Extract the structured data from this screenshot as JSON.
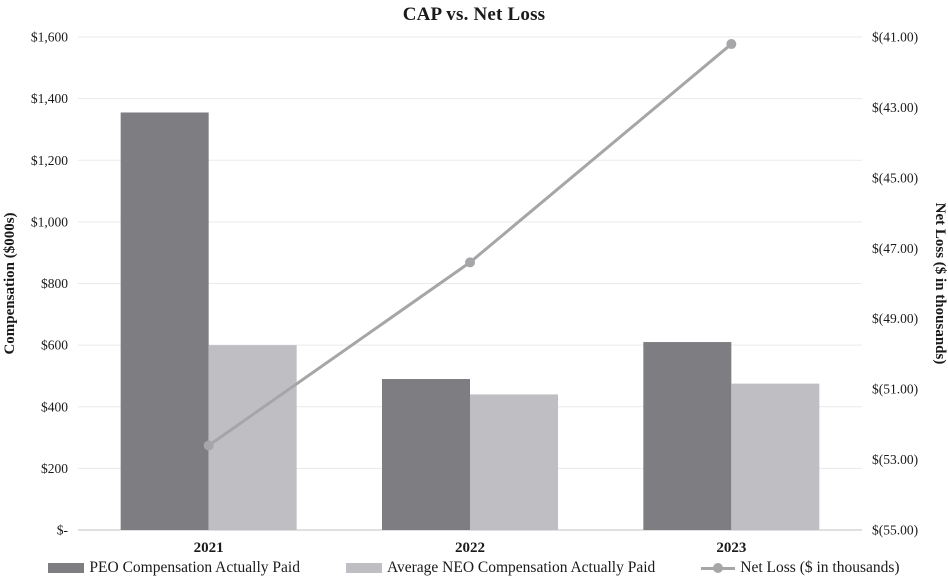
{
  "chart_data": {
    "type": "combo-bar-line",
    "title": "CAP vs. Net Loss",
    "categories": [
      "2021",
      "2022",
      "2023"
    ],
    "series": [
      {
        "name": "PEO Compensation Actually Paid",
        "type": "bar",
        "axis": "left",
        "color": "#7d7d82",
        "values": [
          1355,
          490,
          610
        ]
      },
      {
        "name": "Average NEO Compensation Actually Paid",
        "type": "bar",
        "axis": "left",
        "color": "#bfbfc3",
        "values": [
          600,
          440,
          475
        ]
      },
      {
        "name": "Net Loss ($ in thousands)",
        "type": "line",
        "axis": "right",
        "color": "#a6a6a9",
        "values": [
          -52.6,
          -47.4,
          -41.2
        ]
      }
    ],
    "left_axis": {
      "label": "Compensation ($000s)",
      "min": 0,
      "max": 1600,
      "step": 200,
      "tick_labels": [
        "$-",
        "$200",
        "$400",
        "$600",
        "$800",
        "$1,000",
        "$1,200",
        "$1,400",
        "$1,600"
      ]
    },
    "right_axis": {
      "label": "Net Loss ($ in thousands)",
      "min": -55,
      "max": -41,
      "step": 2,
      "tick_labels": [
        "$(55.00)",
        "$(53.00)",
        "$(51.00)",
        "$(49.00)",
        "$(47.00)",
        "$(45.00)",
        "$(43.00)",
        "$(41.00)"
      ]
    },
    "grid": true,
    "legend_position": "bottom",
    "colors": {
      "gridline": "#eaeaea",
      "axis_line": "#d6d6d6",
      "text": "#1a1a1a"
    }
  }
}
